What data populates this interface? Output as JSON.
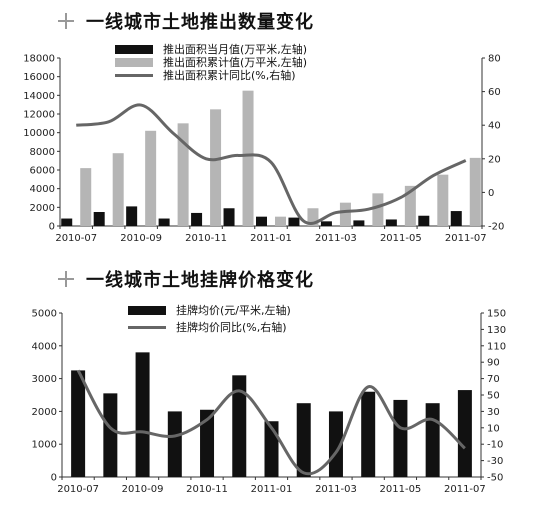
{
  "chart_data": [
    {
      "type": "bar",
      "title": "一线城市土地推出数量变化",
      "x_tick_labels": [
        "2010-07",
        "2010-09",
        "2010-11",
        "2011-01",
        "2011-03",
        "2011-05",
        "2011-07"
      ],
      "categories": [
        "2010-07",
        "2010-08",
        "2010-09",
        "2010-10",
        "2010-11",
        "2010-12",
        "2011-01",
        "2011-02",
        "2011-03",
        "2011-04",
        "2011-05",
        "2011-06",
        "2011-07"
      ],
      "left_axis": {
        "ylim": [
          0,
          18000
        ],
        "ticks": [
          0,
          2000,
          4000,
          6000,
          8000,
          10000,
          12000,
          14000,
          16000,
          18000
        ]
      },
      "right_axis": {
        "ylim": [
          -20,
          80
        ],
        "ticks": [
          -20,
          0,
          20,
          40,
          60,
          80
        ]
      },
      "series": [
        {
          "name": "推出面积当月值(万平米,左轴)",
          "kind": "bar",
          "axis": "left",
          "color": "#111111",
          "values": [
            800,
            1500,
            2100,
            800,
            1400,
            1900,
            1000,
            900,
            500,
            600,
            700,
            1100,
            1600
          ]
        },
        {
          "name": "推出面积累计值(万平米,左轴)",
          "kind": "bar",
          "axis": "left",
          "color": "#b5b5b5",
          "values": [
            6200,
            7800,
            10200,
            11000,
            12500,
            14500,
            1000,
            1900,
            2500,
            3500,
            4300,
            5500,
            7300
          ]
        },
        {
          "name": "推出面积累计同比(%,右轴)",
          "kind": "line",
          "axis": "right",
          "color": "#666666",
          "values": [
            40,
            42,
            52,
            35,
            20,
            22,
            18,
            -17,
            -12,
            -10,
            -3,
            10,
            19
          ]
        }
      ]
    },
    {
      "type": "bar",
      "title": "一线城市土地挂牌价格变化",
      "x_tick_labels": [
        "2010-07",
        "2010-09",
        "2010-11",
        "2011-01",
        "2011-03",
        "2011-05",
        "2011-07"
      ],
      "categories": [
        "2010-07",
        "2010-08",
        "2010-09",
        "2010-10",
        "2010-11",
        "2010-12",
        "2011-01",
        "2011-02",
        "2011-03",
        "2011-04",
        "2011-05",
        "2011-06",
        "2011-07"
      ],
      "left_axis": {
        "ylim": [
          0,
          5000
        ],
        "ticks": [
          0,
          1000,
          2000,
          3000,
          4000,
          5000
        ]
      },
      "right_axis": {
        "ylim": [
          -50,
          150
        ],
        "ticks": [
          -50,
          -30,
          -10,
          10,
          30,
          50,
          70,
          90,
          110,
          130,
          150
        ]
      },
      "series": [
        {
          "name": "挂牌均价(元/平米,左轴)",
          "kind": "bar",
          "axis": "left",
          "color": "#111111",
          "values": [
            3250,
            2550,
            3800,
            2000,
            2050,
            3100,
            1700,
            2250,
            2000,
            2600,
            2350,
            2250,
            2650
          ]
        },
        {
          "name": "挂牌均价同比(%,右轴)",
          "kind": "line",
          "axis": "right",
          "color": "#666666",
          "values": [
            80,
            10,
            5,
            0,
            20,
            55,
            10,
            -45,
            -20,
            60,
            10,
            20,
            -15
          ]
        }
      ]
    }
  ]
}
